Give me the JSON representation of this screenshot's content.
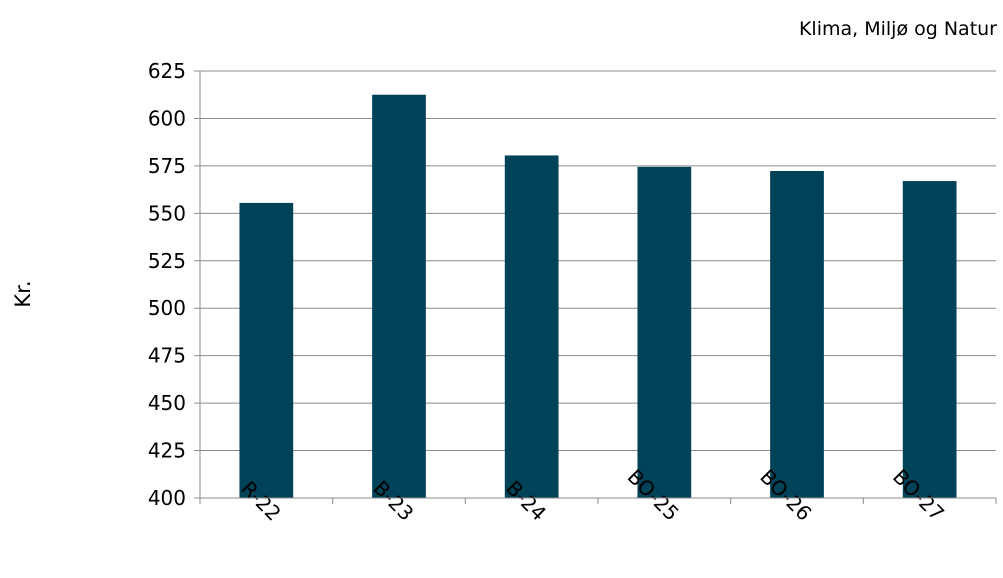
{
  "chart_data": {
    "type": "bar",
    "title": "Klima, Miljø og Natur",
    "xlabel": "",
    "ylabel": "Kr.",
    "categories": [
      "R-22",
      "B-23",
      "B-24",
      "BO-25",
      "BO-26",
      "BO-27"
    ],
    "values": [
      555.5,
      612.5,
      580.5,
      574.5,
      572.3,
      567
    ],
    "ylim": [
      400,
      625
    ],
    "yticks": [
      400,
      425,
      450,
      475,
      500,
      525,
      550,
      575,
      600,
      625
    ],
    "grid": true,
    "bar_color": "#004358",
    "legend": "none"
  }
}
